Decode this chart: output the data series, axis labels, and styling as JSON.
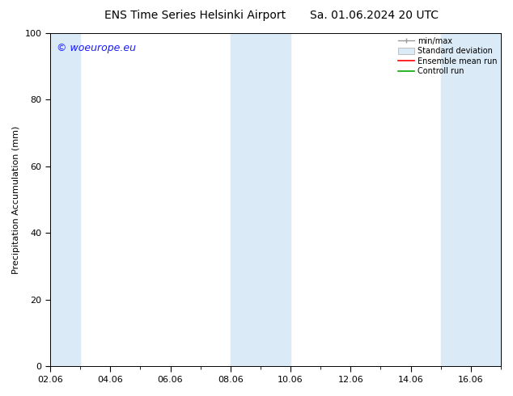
{
  "title_left": "ENS Time Series Helsinki Airport",
  "title_right": "Sa. 01.06.2024 20 UTC",
  "ylabel": "Precipitation Accumulation (mm)",
  "ylim": [
    0,
    100
  ],
  "yticks": [
    0,
    20,
    40,
    60,
    80,
    100
  ],
  "xtick_labels": [
    "02.06",
    "04.06",
    "06.06",
    "08.06",
    "10.06",
    "12.06",
    "14.06",
    "16.06"
  ],
  "xtick_positions": [
    2,
    4,
    6,
    8,
    10,
    12,
    14,
    16
  ],
  "xlim": [
    2,
    17
  ],
  "watermark": "© woeurope.eu",
  "watermark_color": "#1a1aff",
  "bg_color": "#ffffff",
  "plot_bg_color": "#ffffff",
  "shaded_bands": [
    {
      "x_start": 2.0,
      "x_end": 3.0,
      "color": "#daeaf7"
    },
    {
      "x_start": 8.0,
      "x_end": 10.0,
      "color": "#daeaf7"
    },
    {
      "x_start": 15.0,
      "x_end": 17.0,
      "color": "#daeaf7"
    }
  ],
  "legend_labels": [
    "min/max",
    "Standard deviation",
    "Ensemble mean run",
    "Controll run"
  ],
  "legend_colors_line": [
    "#999999",
    "#bbccdd",
    "#ff0000",
    "#00aa00"
  ],
  "title_fontsize": 10,
  "axis_label_fontsize": 8,
  "tick_fontsize": 8,
  "legend_fontsize": 7,
  "watermark_fontsize": 9
}
